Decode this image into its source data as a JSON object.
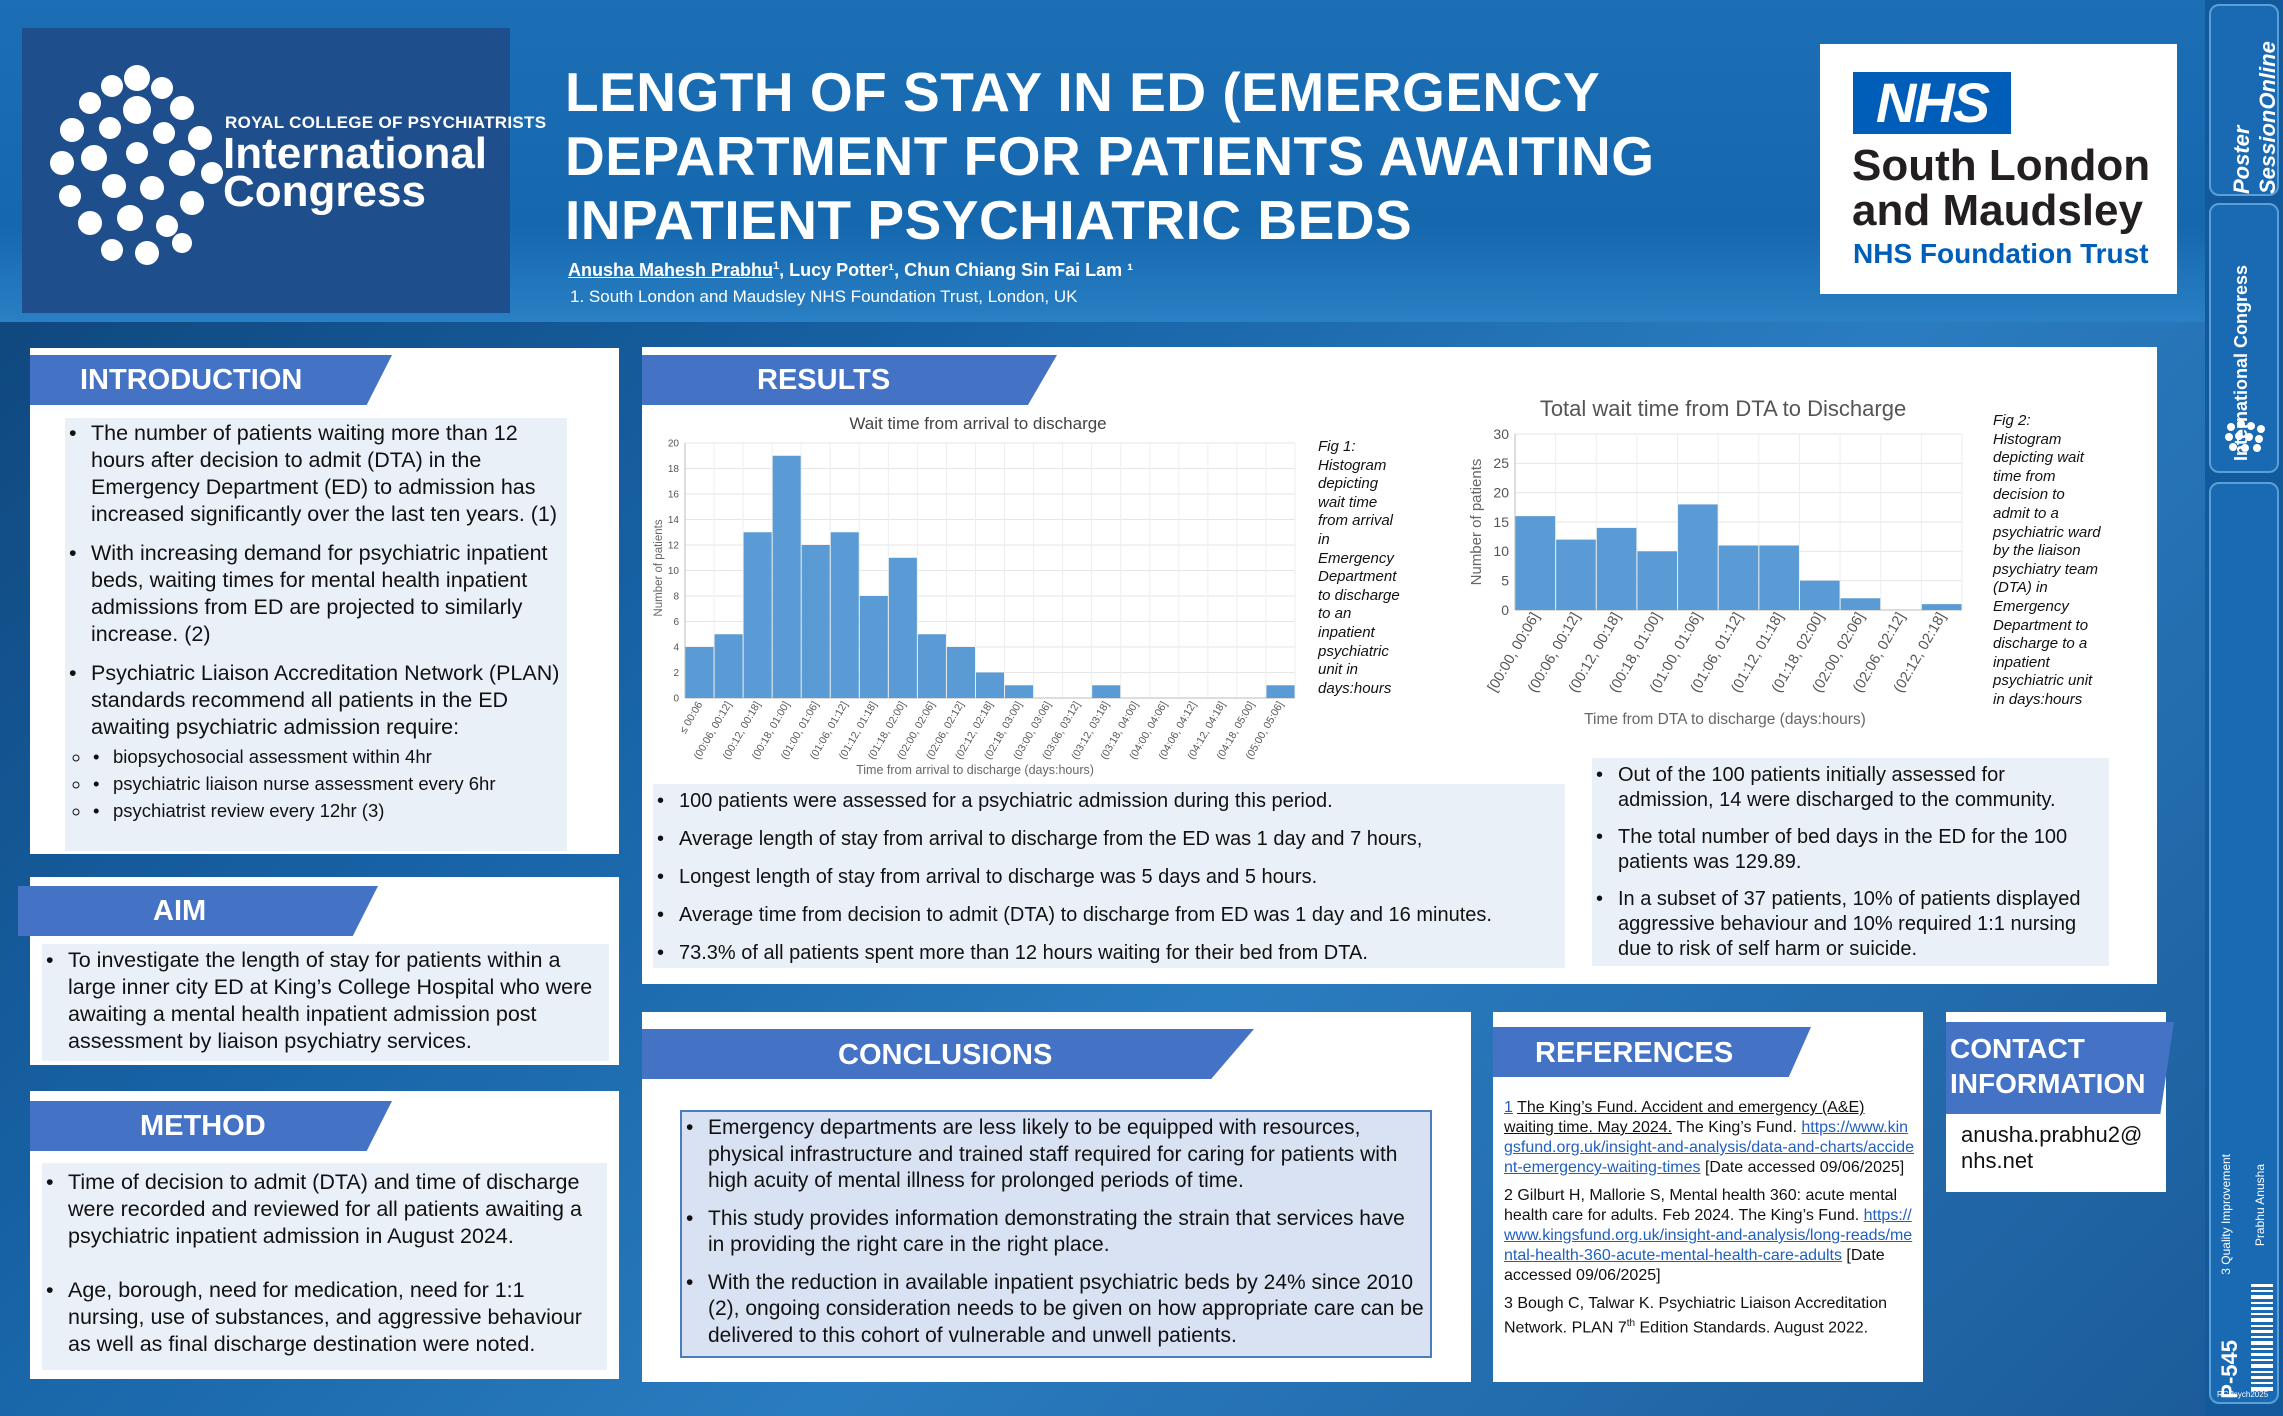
{
  "header": {
    "logo_small": "ROYAL COLLEGE OF PSYCHIATRISTS",
    "logo_big_1": "International",
    "logo_big_2": "Congress",
    "title": "LENGTH OF STAY IN ED (EMERGENCY DEPARTMENT FOR PATIENTS AWAITING INPATIENT PSYCHIATRIC BEDS",
    "author_first": "Anusha Mahesh Prabhu",
    "authors_rest": ", Lucy Potter¹, Chun Chiang Sin Fai Lam ¹",
    "author_first_sup": "1",
    "affiliation": "1. South London and Maudsley NHS Foundation Trust, London, UK",
    "nhs_badge": "NHS",
    "nhs_line1": "South London",
    "nhs_line2": "and Maudsley",
    "nhs_line3": "NHS Foundation Trust"
  },
  "sidebar": {
    "poster_session": "Poster SessionOnline",
    "congress": "International Congress",
    "category": "3 Quality Improvement",
    "presenter": "Prabhu Anusha",
    "poster_id": "P-545",
    "event": "RCPsych2025"
  },
  "introduction": {
    "heading": "INTRODUCTION",
    "b1": "The number of patients waiting more than 12 hours after decision to admit (DTA) in the Emergency Department (ED) to admission has increased significantly over the last ten years. (1)",
    "b2": "With increasing demand for psychiatric inpatient beds, waiting times for mental health inpatient admissions from ED are projected to similarly increase. (2)",
    "b3": "Psychiatric Liaison Accreditation Network (PLAN) standards recommend all patients in the ED awaiting psychiatric admission require:",
    "s1": "biopsychosocial assessment within 4hr",
    "s2": "psychiatric liaison nurse assessment every 6hr",
    "s3": "psychiatrist review every 12hr (3)"
  },
  "aim": {
    "heading": "AIM",
    "b1": "To investigate the length of stay for patients within a large inner city ED at King’s College Hospital who were awaiting a mental health inpatient admission post assessment by liaison psychiatry services."
  },
  "method": {
    "heading": "METHOD",
    "b1": "Time of decision to admit (DTA) and time of discharge were recorded and reviewed for all patients awaiting a psychiatric inpatient admission in August 2024.",
    "b2": "Age, borough, need for medication, need for 1:1 nursing, use of substances, and aggressive behaviour as well as final discharge destination were noted."
  },
  "results": {
    "heading": "RESULTS",
    "fig1_caption": "Fig 1: Histogram depicting wait time from arrival in Emergency Department to discharge to an inpatient psychiatric unit in days:hours",
    "fig2_caption": "Fig 2: Histogram depicting wait time from decision to admit to a psychiatric ward by the liaison psychiatry team (DTA) in Emergency Department to discharge to a inpatient psychiatric unit in days:hours",
    "b1": "100 patients were assessed for a psychiatric admission during this period.",
    "b2": "Average length of stay from arrival to discharge from the ED was 1 day and 7 hours,",
    "b3": "Longest length of stay from arrival to discharge was 5 days and 5 hours.",
    "b4": "Average time from decision to admit (DTA) to discharge from ED was 1 day and 16 minutes.",
    "b5": "73.3% of all patients spent more than 12 hours waiting for their bed from DTA.",
    "r1": "Out of the 100 patients initially assessed for admission, 14 were discharged to the community.",
    "r2": "The total number of bed days in the ED for the 100 patients was 129.89.",
    "r3": "In a subset of 37 patients, 10% of patients displayed aggressive behaviour and 10% required 1:1 nursing due to risk of self harm or suicide."
  },
  "conclusions": {
    "heading": "CONCLUSIONS",
    "b1": "Emergency departments are less likely to be equipped with resources, physical infrastructure and trained staff required for caring for patients with high acuity of mental illness for prolonged periods of time.",
    "b2": "This study provides information demonstrating the strain that services have in providing the right care in the right place.",
    "b3": "With the reduction in available inpatient psychiatric beds by 24% since 2010 (2), ongoing consideration needs to be given on how appropriate care can be delivered to this cohort of vulnerable and unwell patients."
  },
  "references": {
    "heading": "REFERENCES",
    "r1_num": "1",
    "r1_title": "The King’s Fund. Accident and emergency (A&E) waiting time. May 2024.",
    "r1_pub": " The King’s Fund.",
    "r1_url": "https://www.kingsfund.org.uk/insight-and-analysis/data-and-charts/accident-emergency-waiting-times",
    "r1_acc": " [Date accessed 09/06/2025]",
    "r2_text": "2 Gilburt H, Mallorie S, Mental health 360: acute mental health care for adults. Feb 2024. The King’s Fund. ",
    "r2_url": "https://www.kingsfund.org.uk/insight-and-analysis/long-reads/mental-health-360-acute-mental-health-care-adults",
    "r2_acc": " [Date accessed 09/06/2025]",
    "r3_a": "3 Bough C, Talwar K. Psychiatric Liaison Accreditation Network. PLAN 7",
    "r3_sup": "th",
    "r3_b": " Edition Standards. August 2022."
  },
  "contact": {
    "heading_1": "CONTACT",
    "heading_2": "INFORMATION",
    "email_1": "anusha.prabhu2@",
    "email_2": "nhs.net"
  },
  "chart_data": [
    {
      "type": "bar",
      "title": "Wait time from arrival to discharge",
      "xlabel": "Time from arrival to discharge (days:hours)",
      "ylabel": "Number of patients",
      "categories": [
        "≤ 00:06",
        "(00:06, 00:12]",
        "(00:12, 00:18]",
        "(00:18, 01:00]",
        "(01:00, 01:06]",
        "(01:06, 01:12]",
        "(01:12, 01:18]",
        "(01:18, 02:00]",
        "(02:00, 02:06]",
        "(02:06, 02:12]",
        "(02:12, 02:18]",
        "(02:18, 03:00]",
        "(03:00, 03:06]",
        "(03:06, 03:12]",
        "(03:12, 03:18]",
        "(03:18, 04:00]",
        "(04:00, 04:06]",
        "(04:06, 04:12]",
        "(04:12, 04:18]",
        "(04:18, 05:00]",
        "(05:00, 05:06]"
      ],
      "values": [
        4,
        5,
        13,
        19,
        12,
        13,
        8,
        11,
        5,
        4,
        2,
        1,
        0,
        0,
        1,
        0,
        0,
        0,
        0,
        0,
        1
      ],
      "ylim": [
        0,
        20
      ],
      "yticks": [
        0,
        2,
        4,
        6,
        8,
        10,
        12,
        14,
        16,
        18,
        20
      ],
      "grid": true
    },
    {
      "type": "bar",
      "title": "Total wait time from DTA to Discharge",
      "xlabel": "Time from DTA to discharge (days:hours)",
      "ylabel": "Number of patients",
      "categories": [
        "[00:00, 00:06]",
        "(00:06, 00:12]",
        "(00:12, 00:18]",
        "(00:18, 01:00]",
        "(01:00, 01:06]",
        "(01:06, 01:12]",
        "(01:12, 01:18]",
        "(01:18, 02:00]",
        "(02:00, 02:06]",
        "(02:06, 02:12]",
        "(02:12, 02:18]"
      ],
      "values": [
        16,
        12,
        14,
        10,
        18,
        11,
        11,
        5,
        2,
        0,
        1
      ],
      "ylim": [
        0,
        30
      ],
      "yticks": [
        0,
        5,
        10,
        15,
        20,
        25,
        30
      ],
      "grid": true
    }
  ]
}
